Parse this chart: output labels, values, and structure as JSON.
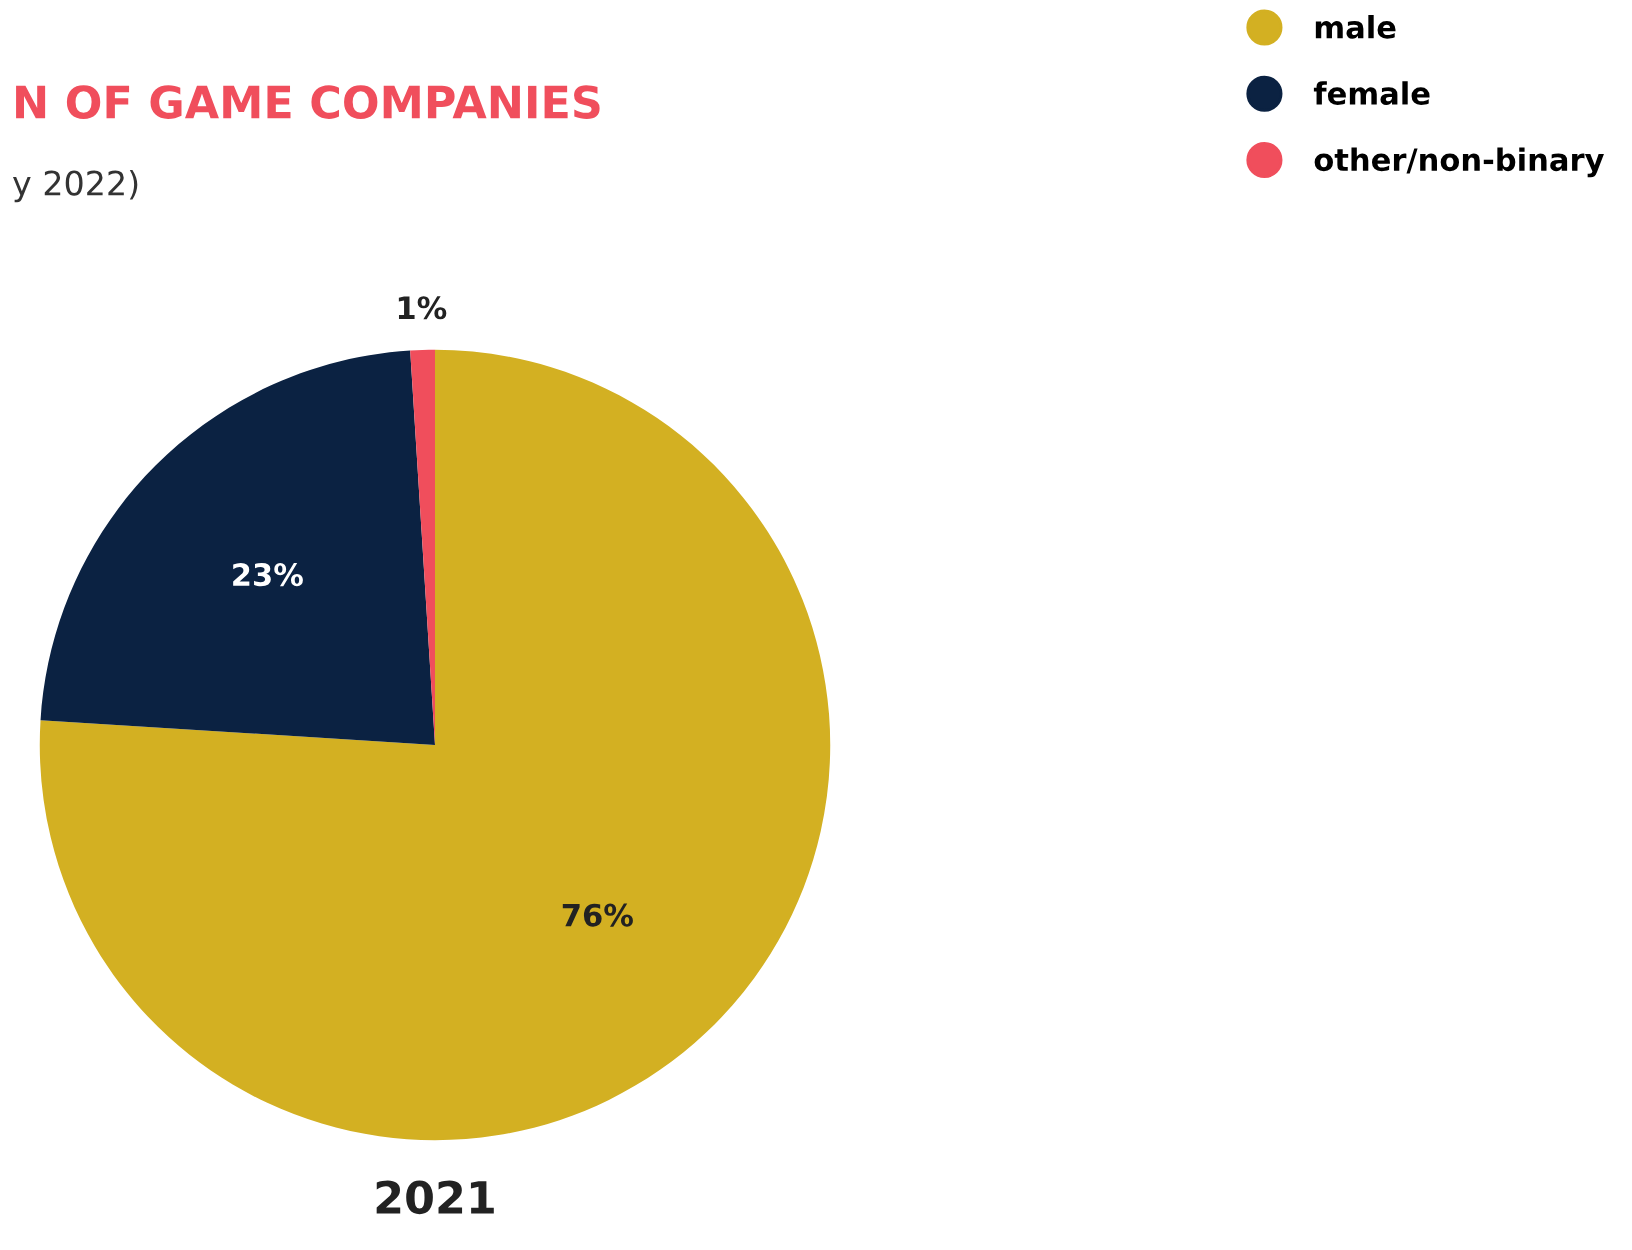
{
  "chart_data": {
    "type": "pie",
    "title": "N OF GAME COMPANIES",
    "subtitle": "y 2022)",
    "xlabel": "2021",
    "categories": [
      "male",
      "female",
      "other/non-binary"
    ],
    "values": [
      76,
      23,
      1
    ],
    "colors": [
      "#d3b022",
      "#0b2242",
      "#f04e5c"
    ],
    "value_labels": [
      "76%",
      "23%",
      "1%"
    ],
    "legend": "top right"
  }
}
